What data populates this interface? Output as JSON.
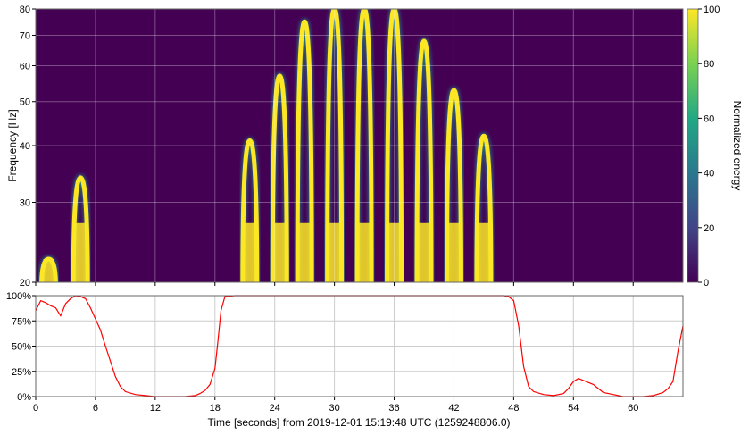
{
  "chart_data": [
    {
      "type": "heatmap",
      "subtype": "q-transform spectrogram",
      "ylabel": "Frequency [Hz]",
      "yscale": "log",
      "ylim": [
        20,
        80
      ],
      "yticks": [
        20,
        30,
        40,
        50,
        60,
        70,
        80
      ],
      "xlim": [
        0,
        65
      ],
      "xticks": [
        0,
        6,
        12,
        18,
        24,
        30,
        36,
        42,
        48,
        54,
        60
      ],
      "colormap": "viridis",
      "colorbar": {
        "label": "Normalized energy",
        "range": [
          0,
          100
        ],
        "ticks": [
          0,
          20,
          40,
          60,
          80,
          100
        ]
      },
      "grid": true,
      "features": [
        {
          "t": 1.3,
          "fmax": 22.5
        },
        {
          "t": 4.5,
          "fmax": 34
        },
        {
          "t": 21.5,
          "fmax": 41
        },
        {
          "t": 24.5,
          "fmax": 57
        },
        {
          "t": 27.0,
          "fmax": 75
        },
        {
          "t": 30.0,
          "fmax": 80
        },
        {
          "t": 33.0,
          "fmax": 80
        },
        {
          "t": 36.0,
          "fmax": 80
        },
        {
          "t": 39.0,
          "fmax": 68
        },
        {
          "t": 42.0,
          "fmax": 53
        },
        {
          "t": 45.0,
          "fmax": 42
        }
      ]
    },
    {
      "type": "line",
      "xlabel": "Time [seconds] from 2019-12-01 15:19:48 UTC (1259248806.0)",
      "ylabel": "",
      "ylim": [
        0,
        100
      ],
      "yticks": [
        0,
        25,
        50,
        75,
        100
      ],
      "ytick_labels": [
        "0%",
        "25%",
        "50%",
        "75%",
        "100%"
      ],
      "xlim": [
        0,
        65
      ],
      "xticks": [
        0,
        6,
        12,
        18,
        24,
        30,
        36,
        42,
        48,
        54,
        60
      ],
      "color": "#ff0000",
      "grid": true,
      "series": [
        {
          "x": [
            0,
            0.5,
            1,
            1.5,
            2,
            2.5,
            3,
            3.5,
            4,
            4.5,
            5,
            5.5,
            6,
            6.5,
            7,
            7.5,
            8,
            8.5,
            9,
            10,
            11,
            12,
            13,
            14,
            15,
            16,
            16.5,
            17,
            17.5,
            18,
            18.3,
            18.6,
            19,
            20,
            24,
            30,
            36,
            42,
            47,
            47.5,
            48,
            48.5,
            49,
            49.5,
            50,
            51,
            52,
            53,
            53.5,
            54,
            54.5,
            55,
            55.5,
            56,
            56.5,
            57,
            58,
            59,
            60,
            61,
            62,
            63,
            63.5,
            64,
            64.5,
            65
          ],
          "y": [
            85,
            95,
            93,
            90,
            88,
            80,
            92,
            97,
            100,
            99,
            97,
            88,
            77,
            66,
            50,
            35,
            20,
            10,
            5,
            2,
            1,
            0,
            0,
            0,
            0,
            1,
            3,
            6,
            12,
            28,
            55,
            85,
            99,
            100,
            100,
            100,
            100,
            100,
            100,
            99,
            95,
            70,
            30,
            10,
            5,
            2,
            1,
            3,
            8,
            15,
            18,
            16,
            14,
            12,
            8,
            4,
            2,
            0,
            0,
            0,
            1,
            4,
            8,
            15,
            45,
            70
          ]
        }
      ]
    }
  ]
}
